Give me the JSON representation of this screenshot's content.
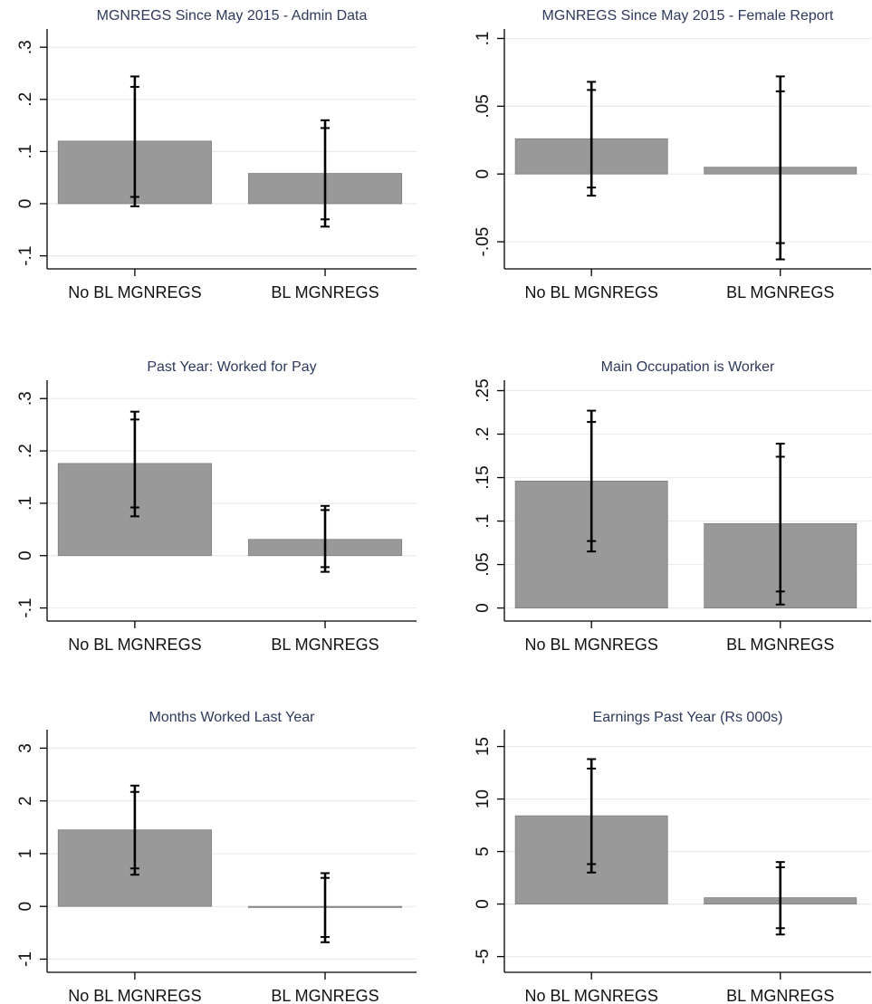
{
  "chart_data": [
    {
      "type": "bar",
      "title": "MGNREGS Since May 2015 - Admin Data",
      "categories": [
        "No BL MGNREGS",
        "BL MGNREGS"
      ],
      "values": [
        0.12,
        0.058
      ],
      "ci_inner": [
        [
          0.013,
          0.224
        ],
        [
          -0.03,
          0.145
        ]
      ],
      "ci_outer": [
        [
          -0.005,
          0.244
        ],
        [
          -0.044,
          0.16
        ]
      ],
      "yticks": [
        -0.1,
        0,
        0.1,
        0.2,
        0.3
      ],
      "ytick_labels": [
        "-.1",
        "0",
        ".1",
        ".2",
        ".3"
      ],
      "ylim": [
        -0.125,
        0.335
      ],
      "grid": true,
      "bar_color": "#999999"
    },
    {
      "type": "bar",
      "title": "MGNREGS Since May 2015  - Female Report",
      "categories": [
        "No BL MGNREGS",
        "BL MGNREGS"
      ],
      "values": [
        0.026,
        0.005
      ],
      "ci_inner": [
        [
          -0.01,
          0.062
        ],
        [
          -0.051,
          0.061
        ]
      ],
      "ci_outer": [
        [
          -0.016,
          0.068
        ],
        [
          -0.063,
          0.072
        ]
      ],
      "yticks": [
        -0.05,
        0,
        0.05,
        0.1
      ],
      "ytick_labels": [
        "-.05",
        "0",
        ".05",
        ".1"
      ],
      "ylim": [
        -0.07,
        0.107
      ],
      "grid": true,
      "bar_color": "#999999"
    },
    {
      "type": "bar",
      "title": "Past Year: Worked for Pay",
      "categories": [
        "No BL MGNREGS",
        "BL MGNREGS"
      ],
      "values": [
        0.176,
        0.031
      ],
      "ci_inner": [
        [
          0.092,
          0.26
        ],
        [
          -0.022,
          0.087
        ]
      ],
      "ci_outer": [
        [
          0.075,
          0.275
        ],
        [
          -0.031,
          0.095
        ]
      ],
      "yticks": [
        -0.1,
        0,
        0.1,
        0.2,
        0.3
      ],
      "ytick_labels": [
        "-.1",
        "0",
        ".1",
        ".2",
        ".3"
      ],
      "ylim": [
        -0.125,
        0.335
      ],
      "grid": true,
      "bar_color": "#999999"
    },
    {
      "type": "bar",
      "title": "Main Occupation is Worker",
      "categories": [
        "No BL MGNREGS",
        "BL MGNREGS"
      ],
      "values": [
        0.146,
        0.097
      ],
      "ci_inner": [
        [
          0.077,
          0.214
        ],
        [
          0.019,
          0.174
        ]
      ],
      "ci_outer": [
        [
          0.065,
          0.227
        ],
        [
          0.004,
          0.189
        ]
      ],
      "yticks": [
        0,
        0.05,
        0.1,
        0.15,
        0.2,
        0.25
      ],
      "ytick_labels": [
        "0",
        ".05",
        ".1",
        ".15",
        ".2",
        ".25"
      ],
      "ylim": [
        -0.015,
        0.262
      ],
      "grid": true,
      "bar_color": "#999999"
    },
    {
      "type": "bar",
      "title": "Months Worked Last Year",
      "categories": [
        "No BL MGNREGS",
        "BL MGNREGS"
      ],
      "values": [
        1.45,
        -0.02
      ],
      "ci_inner": [
        [
          0.72,
          2.17
        ],
        [
          -0.58,
          0.54
        ]
      ],
      "ci_outer": [
        [
          0.6,
          2.29
        ],
        [
          -0.68,
          0.63
        ]
      ],
      "yticks": [
        -1,
        0,
        1,
        2,
        3
      ],
      "ytick_labels": [
        "-1",
        "0",
        "1",
        "2",
        "3"
      ],
      "ylim": [
        -1.25,
        3.35
      ],
      "grid": true,
      "bar_color": "#999999"
    },
    {
      "type": "bar",
      "title": "Earnings Past Year (Rs 000s)",
      "categories": [
        "No BL MGNREGS",
        "BL MGNREGS"
      ],
      "values": [
        8.4,
        0.6
      ],
      "ci_inner": [
        [
          3.8,
          12.9
        ],
        [
          -2.3,
          3.5
        ]
      ],
      "ci_outer": [
        [
          3.0,
          13.8
        ],
        [
          -2.9,
          4.0
        ]
      ],
      "yticks": [
        -5,
        0,
        5,
        10,
        15
      ],
      "ytick_labels": [
        "-5",
        "0",
        "5",
        "10",
        "15"
      ],
      "ylim": [
        -6.5,
        16.6
      ],
      "grid": true,
      "bar_color": "#999999"
    }
  ]
}
